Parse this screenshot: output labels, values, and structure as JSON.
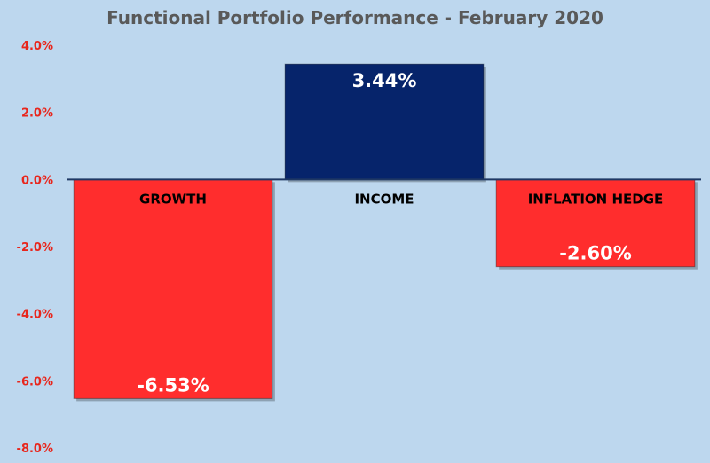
{
  "chart_data": {
    "type": "bar",
    "title": "Functional Portfolio Performance - February 2020",
    "categories": [
      "GROWTH",
      "INCOME",
      "INFLATION HEDGE"
    ],
    "values": [
      -6.53,
      3.44,
      -2.6
    ],
    "value_labels": [
      "-6.53%",
      "3.44%",
      "-2.60%"
    ],
    "ylim": [
      -8,
      4
    ],
    "yticks": [
      4,
      2,
      0,
      -2,
      -4,
      -6,
      -8
    ],
    "ytick_labels": [
      "4.0%",
      "2.0%",
      "0.0%",
      "-2.0%",
      "-4.0%",
      "-6.0%",
      "-8.0%"
    ],
    "xlabel": "",
    "ylabel": "",
    "grid": false,
    "legend": "none",
    "colors": {
      "positive": "#06246b",
      "negative": "#ff2d2d",
      "background": "#bdd7ee",
      "tick_text": "#e8261c",
      "title_text": "#595959"
    }
  }
}
